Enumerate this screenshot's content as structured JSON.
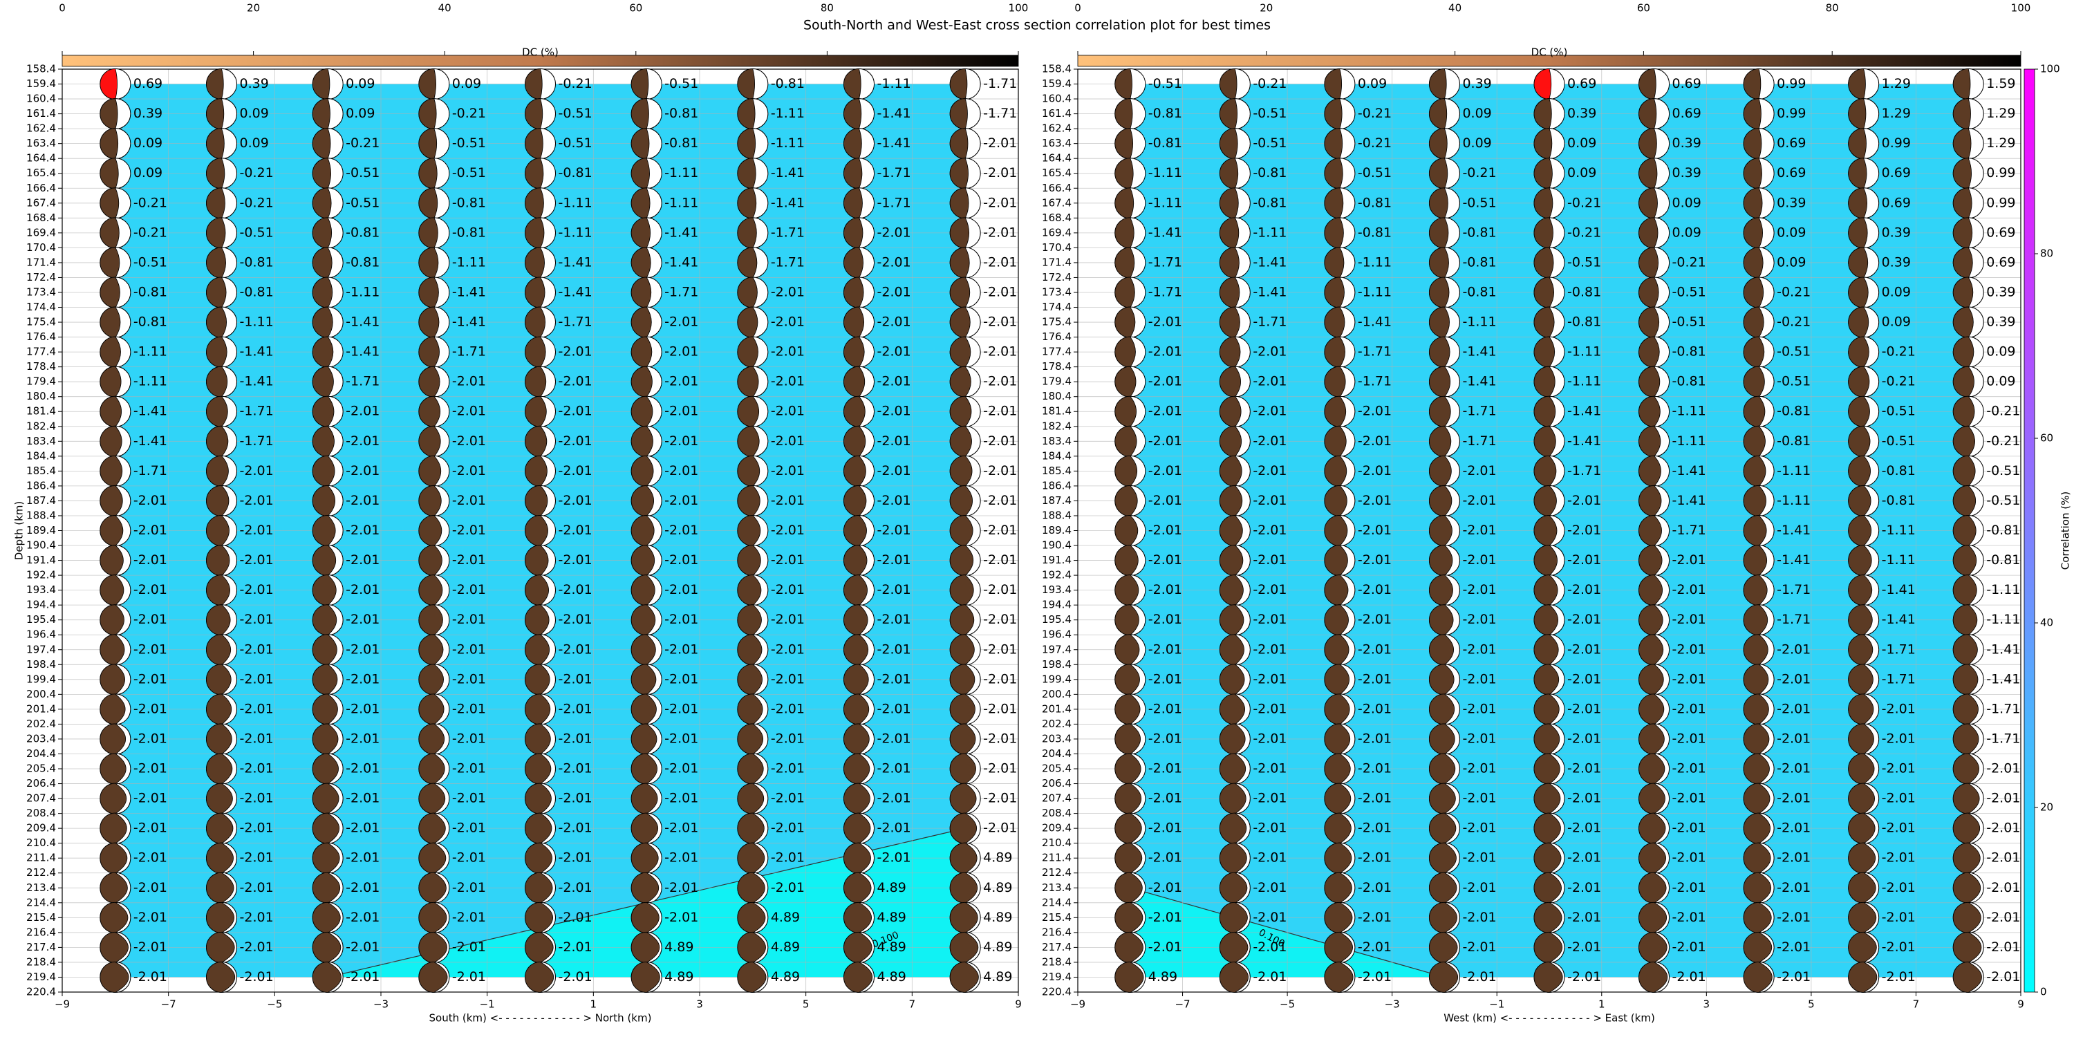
{
  "title": "South-North and West-East cross section correlation plot for best times",
  "chart_data": [
    {
      "type": "beachball",
      "xlabel": "South (km) <- - - - - - - - - - - - > North (km)",
      "ylabel": "Depth (km)",
      "xlim": [
        -9,
        9
      ],
      "xticks": [
        {
          "value": -9,
          "label": "−9"
        },
        {
          "value": -7,
          "label": "−7"
        },
        {
          "value": -5,
          "label": "−5"
        },
        {
          "value": -3,
          "label": "−3"
        },
        {
          "value": -1,
          "label": "−1"
        },
        1,
        3,
        5,
        7,
        9
      ],
      "ylim": [
        220.4,
        158.4
      ],
      "yticks": [
        158.4,
        159.4,
        160.4,
        161.4,
        162.4,
        163.4,
        164.4,
        165.4,
        166.4,
        167.4,
        168.4,
        169.4,
        170.4,
        171.4,
        172.4,
        173.4,
        174.4,
        175.4,
        176.4,
        177.4,
        178.4,
        179.4,
        180.4,
        181.4,
        182.4,
        183.4,
        184.4,
        185.4,
        186.4,
        187.4,
        188.4,
        189.4,
        190.4,
        191.4,
        192.4,
        193.4,
        194.4,
        195.4,
        196.4,
        197.4,
        198.4,
        199.4,
        200.4,
        201.4,
        202.4,
        203.4,
        204.4,
        205.4,
        206.4,
        207.4,
        208.4,
        209.4,
        210.4,
        211.4,
        212.4,
        213.4,
        214.4,
        215.4,
        216.4,
        217.4,
        218.4,
        219.4,
        220.4
      ],
      "x": [
        -8,
        -6,
        -4,
        -2,
        0,
        2,
        4,
        6,
        8
      ],
      "depths": [
        159.4,
        161.4,
        163.4,
        165.4,
        167.4,
        169.4,
        171.4,
        173.4,
        175.4,
        177.4,
        179.4,
        181.4,
        183.4,
        185.4,
        187.4,
        189.4,
        191.4,
        193.4,
        195.4,
        197.4,
        199.4,
        201.4,
        203.4,
        205.4,
        207.4,
        209.4,
        211.4,
        213.4,
        215.4,
        217.4,
        219.4
      ],
      "values": [
        [
          0.69,
          0.39,
          0.09,
          0.09,
          -0.21,
          -0.51,
          -0.81,
          -1.11,
          -1.71
        ],
        [
          0.39,
          0.09,
          0.09,
          -0.21,
          -0.51,
          -0.81,
          -1.11,
          -1.41,
          -1.71
        ],
        [
          0.09,
          0.09,
          -0.21,
          -0.51,
          -0.51,
          -0.81,
          -1.11,
          -1.41,
          -2.01
        ],
        [
          0.09,
          -0.21,
          -0.51,
          -0.51,
          -0.81,
          -1.11,
          -1.41,
          -1.71,
          -2.01
        ],
        [
          -0.21,
          -0.21,
          -0.51,
          -0.81,
          -1.11,
          -1.11,
          -1.41,
          -1.71,
          -2.01
        ],
        [
          -0.21,
          -0.51,
          -0.81,
          -0.81,
          -1.11,
          -1.41,
          -1.71,
          -2.01,
          -2.01
        ],
        [
          -0.51,
          -0.81,
          -0.81,
          -1.11,
          -1.41,
          -1.41,
          -1.71,
          -2.01,
          -2.01
        ],
        [
          -0.81,
          -0.81,
          -1.11,
          -1.41,
          -1.41,
          -1.71,
          -2.01,
          -2.01,
          -2.01
        ],
        [
          -0.81,
          -1.11,
          -1.41,
          -1.41,
          -1.71,
          -2.01,
          -2.01,
          -2.01,
          -2.01
        ],
        [
          -1.11,
          -1.41,
          -1.41,
          -1.71,
          -2.01,
          -2.01,
          -2.01,
          -2.01,
          -2.01
        ],
        [
          -1.11,
          -1.41,
          -1.71,
          -2.01,
          -2.01,
          -2.01,
          -2.01,
          -2.01,
          -2.01
        ],
        [
          -1.41,
          -1.71,
          -2.01,
          -2.01,
          -2.01,
          -2.01,
          -2.01,
          -2.01,
          -2.01
        ],
        [
          -1.41,
          -1.71,
          -2.01,
          -2.01,
          -2.01,
          -2.01,
          -2.01,
          -2.01,
          -2.01
        ],
        [
          -1.71,
          -2.01,
          -2.01,
          -2.01,
          -2.01,
          -2.01,
          -2.01,
          -2.01,
          -2.01
        ],
        [
          -2.01,
          -2.01,
          -2.01,
          -2.01,
          -2.01,
          -2.01,
          -2.01,
          -2.01,
          -2.01
        ],
        [
          -2.01,
          -2.01,
          -2.01,
          -2.01,
          -2.01,
          -2.01,
          -2.01,
          -2.01,
          -2.01
        ],
        [
          -2.01,
          -2.01,
          -2.01,
          -2.01,
          -2.01,
          -2.01,
          -2.01,
          -2.01,
          -2.01
        ],
        [
          -2.01,
          -2.01,
          -2.01,
          -2.01,
          -2.01,
          -2.01,
          -2.01,
          -2.01,
          -2.01
        ],
        [
          -2.01,
          -2.01,
          -2.01,
          -2.01,
          -2.01,
          -2.01,
          -2.01,
          -2.01,
          -2.01
        ],
        [
          -2.01,
          -2.01,
          -2.01,
          -2.01,
          -2.01,
          -2.01,
          -2.01,
          -2.01,
          -2.01
        ],
        [
          -2.01,
          -2.01,
          -2.01,
          -2.01,
          -2.01,
          -2.01,
          -2.01,
          -2.01,
          -2.01
        ],
        [
          -2.01,
          -2.01,
          -2.01,
          -2.01,
          -2.01,
          -2.01,
          -2.01,
          -2.01,
          -2.01
        ],
        [
          -2.01,
          -2.01,
          -2.01,
          -2.01,
          -2.01,
          -2.01,
          -2.01,
          -2.01,
          -2.01
        ],
        [
          -2.01,
          -2.01,
          -2.01,
          -2.01,
          -2.01,
          -2.01,
          -2.01,
          -2.01,
          -2.01
        ],
        [
          -2.01,
          -2.01,
          -2.01,
          -2.01,
          -2.01,
          -2.01,
          -2.01,
          -2.01,
          -2.01
        ],
        [
          -2.01,
          -2.01,
          -2.01,
          -2.01,
          -2.01,
          -2.01,
          -2.01,
          -2.01,
          -2.01
        ],
        [
          -2.01,
          -2.01,
          -2.01,
          -2.01,
          -2.01,
          -2.01,
          -2.01,
          -2.01,
          4.89
        ],
        [
          -2.01,
          -2.01,
          -2.01,
          -2.01,
          -2.01,
          -2.01,
          -2.01,
          4.89,
          4.89
        ],
        [
          -2.01,
          -2.01,
          -2.01,
          -2.01,
          -2.01,
          -2.01,
          4.89,
          4.89,
          4.89
        ],
        [
          -2.01,
          -2.01,
          -2.01,
          -2.01,
          -2.01,
          4.89,
          4.89,
          4.89,
          4.89
        ],
        [
          -2.01,
          -2.01,
          -2.01,
          -2.01,
          -2.01,
          4.89,
          4.89,
          4.89,
          4.89
        ]
      ],
      "ball_color": "#5c3b24",
      "highlight": [
        0,
        0
      ],
      "highlight_color": "#ff1010",
      "field_color": "#30d4f8",
      "contour_label": "0.100",
      "colorbar": {
        "label": "DC (%)",
        "lim": [
          0,
          100
        ],
        "ticks": [
          0,
          20,
          40,
          60,
          80,
          100
        ]
      }
    },
    {
      "type": "beachball",
      "xlabel": "West (km) <- - - - - - - - - - - - > East (km)",
      "xlim": [
        -9,
        9
      ],
      "xticks": [
        {
          "value": -9,
          "label": "−9"
        },
        {
          "value": -7,
          "label": "−7"
        },
        {
          "value": -5,
          "label": "−5"
        },
        {
          "value": -3,
          "label": "−3"
        },
        {
          "value": -1,
          "label": "−1"
        },
        1,
        3,
        5,
        7,
        9
      ],
      "ylim": [
        220.4,
        158.4
      ],
      "yticks": [
        158.4,
        159.4,
        160.4,
        161.4,
        162.4,
        163.4,
        164.4,
        165.4,
        166.4,
        167.4,
        168.4,
        169.4,
        170.4,
        171.4,
        172.4,
        173.4,
        174.4,
        175.4,
        176.4,
        177.4,
        178.4,
        179.4,
        180.4,
        181.4,
        182.4,
        183.4,
        184.4,
        185.4,
        186.4,
        187.4,
        188.4,
        189.4,
        190.4,
        191.4,
        192.4,
        193.4,
        194.4,
        195.4,
        196.4,
        197.4,
        198.4,
        199.4,
        200.4,
        201.4,
        202.4,
        203.4,
        204.4,
        205.4,
        206.4,
        207.4,
        208.4,
        209.4,
        210.4,
        211.4,
        212.4,
        213.4,
        214.4,
        215.4,
        216.4,
        217.4,
        218.4,
        219.4,
        220.4
      ],
      "x": [
        -8,
        -6,
        -4,
        -2,
        0,
        2,
        4,
        6,
        8
      ],
      "depths": [
        159.4,
        161.4,
        163.4,
        165.4,
        167.4,
        169.4,
        171.4,
        173.4,
        175.4,
        177.4,
        179.4,
        181.4,
        183.4,
        185.4,
        187.4,
        189.4,
        191.4,
        193.4,
        195.4,
        197.4,
        199.4,
        201.4,
        203.4,
        205.4,
        207.4,
        209.4,
        211.4,
        213.4,
        215.4,
        217.4,
        219.4
      ],
      "values": [
        [
          -0.51,
          -0.21,
          0.09,
          0.39,
          0.69,
          0.69,
          0.99,
          1.29,
          1.59
        ],
        [
          -0.81,
          -0.51,
          -0.21,
          0.09,
          0.39,
          0.69,
          0.99,
          1.29,
          1.29
        ],
        [
          -0.81,
          -0.51,
          -0.21,
          0.09,
          0.09,
          0.39,
          0.69,
          0.99,
          1.29
        ],
        [
          -1.11,
          -0.81,
          -0.51,
          -0.21,
          0.09,
          0.39,
          0.69,
          0.69,
          0.99
        ],
        [
          -1.11,
          -0.81,
          -0.81,
          -0.51,
          -0.21,
          0.09,
          0.39,
          0.69,
          0.99
        ],
        [
          -1.41,
          -1.11,
          -0.81,
          -0.81,
          -0.21,
          0.09,
          0.09,
          0.39,
          0.69
        ],
        [
          -1.71,
          -1.41,
          -1.11,
          -0.81,
          -0.51,
          -0.21,
          0.09,
          0.39,
          0.69
        ],
        [
          -1.71,
          -1.41,
          -1.11,
          -0.81,
          -0.81,
          -0.51,
          -0.21,
          0.09,
          0.39
        ],
        [
          -2.01,
          -1.71,
          -1.41,
          -1.11,
          -0.81,
          -0.51,
          -0.21,
          0.09,
          0.39
        ],
        [
          -2.01,
          -2.01,
          -1.71,
          -1.41,
          -1.11,
          -0.81,
          -0.51,
          -0.21,
          0.09
        ],
        [
          -2.01,
          -2.01,
          -1.71,
          -1.41,
          -1.11,
          -0.81,
          -0.51,
          -0.21,
          0.09
        ],
        [
          -2.01,
          -2.01,
          -2.01,
          -1.71,
          -1.41,
          -1.11,
          -0.81,
          -0.51,
          -0.21
        ],
        [
          -2.01,
          -2.01,
          -2.01,
          -1.71,
          -1.41,
          -1.11,
          -0.81,
          -0.51,
          -0.21
        ],
        [
          -2.01,
          -2.01,
          -2.01,
          -2.01,
          -1.71,
          -1.41,
          -1.11,
          -0.81,
          -0.51
        ],
        [
          -2.01,
          -2.01,
          -2.01,
          -2.01,
          -2.01,
          -1.41,
          -1.11,
          -0.81,
          -0.51
        ],
        [
          -2.01,
          -2.01,
          -2.01,
          -2.01,
          -2.01,
          -1.71,
          -1.41,
          -1.11,
          -0.81
        ],
        [
          -2.01,
          -2.01,
          -2.01,
          -2.01,
          -2.01,
          -2.01,
          -1.41,
          -1.11,
          -0.81
        ],
        [
          -2.01,
          -2.01,
          -2.01,
          -2.01,
          -2.01,
          -2.01,
          -1.71,
          -1.41,
          -1.11
        ],
        [
          -2.01,
          -2.01,
          -2.01,
          -2.01,
          -2.01,
          -2.01,
          -1.71,
          -1.41,
          -1.11
        ],
        [
          -2.01,
          -2.01,
          -2.01,
          -2.01,
          -2.01,
          -2.01,
          -2.01,
          -1.71,
          -1.41
        ],
        [
          -2.01,
          -2.01,
          -2.01,
          -2.01,
          -2.01,
          -2.01,
          -2.01,
          -1.71,
          -1.41
        ],
        [
          -2.01,
          -2.01,
          -2.01,
          -2.01,
          -2.01,
          -2.01,
          -2.01,
          -2.01,
          -1.71
        ],
        [
          -2.01,
          -2.01,
          -2.01,
          -2.01,
          -2.01,
          -2.01,
          -2.01,
          -2.01,
          -1.71
        ],
        [
          -2.01,
          -2.01,
          -2.01,
          -2.01,
          -2.01,
          -2.01,
          -2.01,
          -2.01,
          -2.01
        ],
        [
          -2.01,
          -2.01,
          -2.01,
          -2.01,
          -2.01,
          -2.01,
          -2.01,
          -2.01,
          -2.01
        ],
        [
          -2.01,
          -2.01,
          -2.01,
          -2.01,
          -2.01,
          -2.01,
          -2.01,
          -2.01,
          -2.01
        ],
        [
          -2.01,
          -2.01,
          -2.01,
          -2.01,
          -2.01,
          -2.01,
          -2.01,
          -2.01,
          -2.01
        ],
        [
          -2.01,
          -2.01,
          -2.01,
          -2.01,
          -2.01,
          -2.01,
          -2.01,
          -2.01,
          -2.01
        ],
        [
          -2.01,
          -2.01,
          -2.01,
          -2.01,
          -2.01,
          -2.01,
          -2.01,
          -2.01,
          -2.01
        ],
        [
          -2.01,
          -2.01,
          -2.01,
          -2.01,
          -2.01,
          -2.01,
          -2.01,
          -2.01,
          -2.01
        ],
        [
          4.89,
          -2.01,
          -2.01,
          -2.01,
          -2.01,
          -2.01,
          -2.01,
          -2.01,
          -2.01
        ]
      ],
      "ball_color": "#5c3b24",
      "highlight": [
        0,
        4
      ],
      "highlight_color": "#ff1010",
      "field_color": "#30d4f8",
      "contour_label": "0.100",
      "colorbar": {
        "label": "DC (%)",
        "lim": [
          0,
          100
        ],
        "ticks": [
          0,
          20,
          40,
          60,
          80,
          100
        ]
      },
      "colorbar2": {
        "label": "Correlation (%)",
        "lim": [
          0,
          100
        ],
        "ticks": [
          0,
          20,
          40,
          60,
          80,
          100
        ]
      }
    }
  ]
}
